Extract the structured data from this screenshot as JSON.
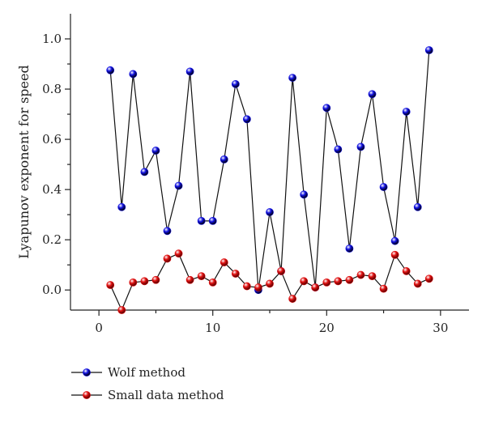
{
  "chart_data": {
    "type": "line",
    "title": "",
    "xlabel": "",
    "ylabel": "Lyapunov exponent for speed",
    "xlim": [
      -2.5,
      32.5
    ],
    "ylim": [
      -0.08,
      1.1
    ],
    "x_ticks": [
      "0",
      "10",
      "20",
      "30"
    ],
    "x_tick_values": [
      0,
      10,
      20,
      30
    ],
    "y_ticks": [
      "0.0",
      "0.2",
      "0.4",
      "0.6",
      "0.8",
      "1.0"
    ],
    "y_tick_values": [
      0.0,
      0.2,
      0.4,
      0.6,
      0.8,
      1.0
    ],
    "grid": false,
    "legend_position": "bottom-left",
    "x": [
      1,
      2,
      3,
      4,
      5,
      6,
      7,
      8,
      9,
      10,
      11,
      12,
      13,
      14,
      15,
      16,
      17,
      18,
      19,
      20,
      21,
      22,
      23,
      24,
      25,
      26,
      27,
      28,
      29
    ],
    "series": [
      {
        "name": "Wolf method",
        "color": "#1010e0",
        "values": [
          0.875,
          0.33,
          0.86,
          0.47,
          0.555,
          0.235,
          0.415,
          0.87,
          0.275,
          0.275,
          0.52,
          0.82,
          0.68,
          0.0,
          0.31,
          0.075,
          0.845,
          0.38,
          0.01,
          0.725,
          0.56,
          0.165,
          0.57,
          0.78,
          0.41,
          0.195,
          0.71,
          0.33,
          0.955
        ]
      },
      {
        "name": "Small data method",
        "color": "#e01010",
        "values": [
          0.02,
          -0.08,
          0.03,
          0.035,
          0.04,
          0.125,
          0.145,
          0.04,
          0.055,
          0.03,
          0.11,
          0.065,
          0.015,
          0.01,
          0.025,
          0.075,
          -0.035,
          0.035,
          0.01,
          0.03,
          0.035,
          0.04,
          0.06,
          0.055,
          0.005,
          0.14,
          0.075,
          0.025,
          0.045
        ]
      }
    ]
  }
}
